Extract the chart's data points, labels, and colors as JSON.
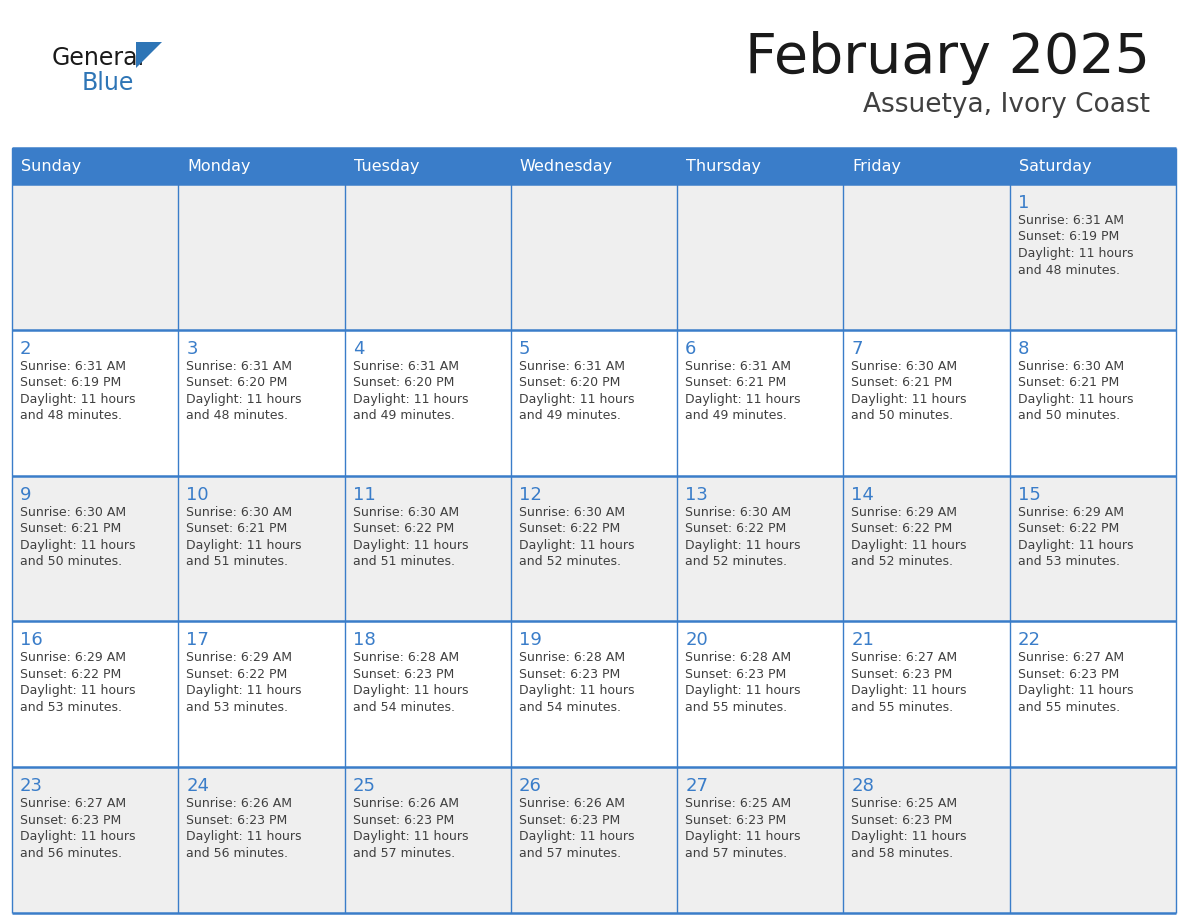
{
  "title": "February 2025",
  "subtitle": "Assuetya, Ivory Coast",
  "days_of_week": [
    "Sunday",
    "Monday",
    "Tuesday",
    "Wednesday",
    "Thursday",
    "Friday",
    "Saturday"
  ],
  "header_bg": "#3A7DC9",
  "header_text": "#FFFFFF",
  "cell_bg_white": "#FFFFFF",
  "cell_bg_gray": "#EFEFEF",
  "border_color": "#3A7DC9",
  "day_num_color": "#3A7DC9",
  "cell_text_color": "#404040",
  "title_color": "#1a1a1a",
  "subtitle_color": "#404040",
  "logo_general_color": "#1a1a1a",
  "logo_blue_color": "#2E75B6",
  "calendar": [
    [
      null,
      null,
      null,
      null,
      null,
      null,
      1
    ],
    [
      2,
      3,
      4,
      5,
      6,
      7,
      8
    ],
    [
      9,
      10,
      11,
      12,
      13,
      14,
      15
    ],
    [
      16,
      17,
      18,
      19,
      20,
      21,
      22
    ],
    [
      23,
      24,
      25,
      26,
      27,
      28,
      null
    ]
  ],
  "row_bg": [
    "#EFEFEF",
    "#FFFFFF",
    "#EFEFEF",
    "#FFFFFF",
    "#EFEFEF"
  ],
  "cell_data": {
    "1": {
      "sunrise": "6:31 AM",
      "sunset": "6:19 PM",
      "daylight": "11 hours and 48 minutes."
    },
    "2": {
      "sunrise": "6:31 AM",
      "sunset": "6:19 PM",
      "daylight": "11 hours and 48 minutes."
    },
    "3": {
      "sunrise": "6:31 AM",
      "sunset": "6:20 PM",
      "daylight": "11 hours and 48 minutes."
    },
    "4": {
      "sunrise": "6:31 AM",
      "sunset": "6:20 PM",
      "daylight": "11 hours and 49 minutes."
    },
    "5": {
      "sunrise": "6:31 AM",
      "sunset": "6:20 PM",
      "daylight": "11 hours and 49 minutes."
    },
    "6": {
      "sunrise": "6:31 AM",
      "sunset": "6:21 PM",
      "daylight": "11 hours and 49 minutes."
    },
    "7": {
      "sunrise": "6:30 AM",
      "sunset": "6:21 PM",
      "daylight": "11 hours and 50 minutes."
    },
    "8": {
      "sunrise": "6:30 AM",
      "sunset": "6:21 PM",
      "daylight": "11 hours and 50 minutes."
    },
    "9": {
      "sunrise": "6:30 AM",
      "sunset": "6:21 PM",
      "daylight": "11 hours and 50 minutes."
    },
    "10": {
      "sunrise": "6:30 AM",
      "sunset": "6:21 PM",
      "daylight": "11 hours and 51 minutes."
    },
    "11": {
      "sunrise": "6:30 AM",
      "sunset": "6:22 PM",
      "daylight": "11 hours and 51 minutes."
    },
    "12": {
      "sunrise": "6:30 AM",
      "sunset": "6:22 PM",
      "daylight": "11 hours and 52 minutes."
    },
    "13": {
      "sunrise": "6:30 AM",
      "sunset": "6:22 PM",
      "daylight": "11 hours and 52 minutes."
    },
    "14": {
      "sunrise": "6:29 AM",
      "sunset": "6:22 PM",
      "daylight": "11 hours and 52 minutes."
    },
    "15": {
      "sunrise": "6:29 AM",
      "sunset": "6:22 PM",
      "daylight": "11 hours and 53 minutes."
    },
    "16": {
      "sunrise": "6:29 AM",
      "sunset": "6:22 PM",
      "daylight": "11 hours and 53 minutes."
    },
    "17": {
      "sunrise": "6:29 AM",
      "sunset": "6:22 PM",
      "daylight": "11 hours and 53 minutes."
    },
    "18": {
      "sunrise": "6:28 AM",
      "sunset": "6:23 PM",
      "daylight": "11 hours and 54 minutes."
    },
    "19": {
      "sunrise": "6:28 AM",
      "sunset": "6:23 PM",
      "daylight": "11 hours and 54 minutes."
    },
    "20": {
      "sunrise": "6:28 AM",
      "sunset": "6:23 PM",
      "daylight": "11 hours and 55 minutes."
    },
    "21": {
      "sunrise": "6:27 AM",
      "sunset": "6:23 PM",
      "daylight": "11 hours and 55 minutes."
    },
    "22": {
      "sunrise": "6:27 AM",
      "sunset": "6:23 PM",
      "daylight": "11 hours and 55 minutes."
    },
    "23": {
      "sunrise": "6:27 AM",
      "sunset": "6:23 PM",
      "daylight": "11 hours and 56 minutes."
    },
    "24": {
      "sunrise": "6:26 AM",
      "sunset": "6:23 PM",
      "daylight": "11 hours and 56 minutes."
    },
    "25": {
      "sunrise": "6:26 AM",
      "sunset": "6:23 PM",
      "daylight": "11 hours and 57 minutes."
    },
    "26": {
      "sunrise": "6:26 AM",
      "sunset": "6:23 PM",
      "daylight": "11 hours and 57 minutes."
    },
    "27": {
      "sunrise": "6:25 AM",
      "sunset": "6:23 PM",
      "daylight": "11 hours and 57 minutes."
    },
    "28": {
      "sunrise": "6:25 AM",
      "sunset": "6:23 PM",
      "daylight": "11 hours and 58 minutes."
    }
  }
}
